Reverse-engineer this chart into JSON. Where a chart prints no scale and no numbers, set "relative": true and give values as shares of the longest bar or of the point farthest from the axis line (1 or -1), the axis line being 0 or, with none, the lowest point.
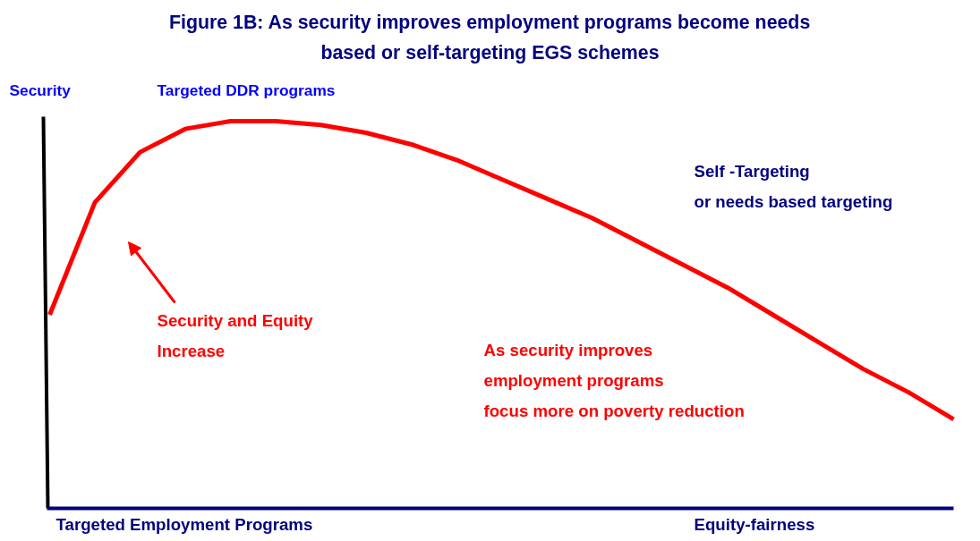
{
  "chart_data": {
    "type": "line",
    "title": "Figure 1B: As security improves employment programs become needs\nbased or self-targeting EGS schemes",
    "ylabel": "Security",
    "xlabel": "Equity-fairness",
    "relative": true,
    "marker": "none",
    "line_style": "solid",
    "grid": false,
    "categories": [
      null,
      null,
      null,
      null,
      null,
      null,
      null,
      null,
      null,
      null,
      null,
      null,
      null,
      null,
      null,
      null,
      null,
      null,
      null,
      null,
      null
    ],
    "series": [
      {
        "color": "#ff0000",
        "values": [
          0.5,
          0.79,
          0.92,
          0.98,
          1.0,
          1.0,
          0.99,
          0.97,
          0.94,
          0.9,
          0.85,
          0.8,
          0.75,
          0.69,
          0.63,
          0.57,
          0.5,
          0.43,
          0.36,
          0.3,
          0.23
        ]
      }
    ],
    "annotations": [
      "Targeted DDR programs",
      "Self -Targeting\nor needs based targeting",
      "Security and Equity\nIncrease",
      "As security improves\nemployment programs\nfocus more on poverty reduction",
      "Targeted Employment Programs"
    ]
  }
}
